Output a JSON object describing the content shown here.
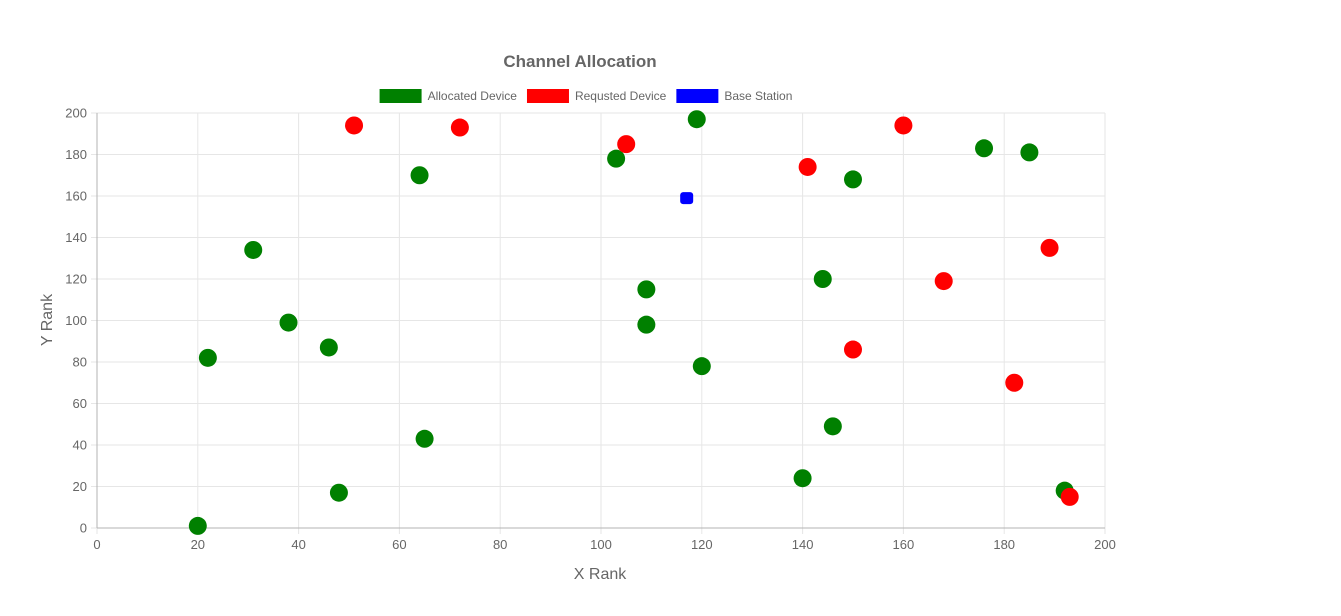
{
  "chart_data": {
    "type": "scatter",
    "title": "Channel Allocation",
    "xlabel": "X Rank",
    "ylabel": "Y Rank",
    "xlim": [
      0,
      200
    ],
    "ylim": [
      0,
      200
    ],
    "xticks": [
      0,
      20,
      40,
      60,
      80,
      100,
      120,
      140,
      160,
      180,
      200
    ],
    "yticks": [
      0,
      20,
      40,
      60,
      80,
      100,
      120,
      140,
      160,
      180,
      200
    ],
    "grid": true,
    "legend_position": "top",
    "series": [
      {
        "name": "Allocated Device",
        "color": "#008000",
        "marker": "circle",
        "points": [
          {
            "x": 20,
            "y": 1
          },
          {
            "x": 22,
            "y": 82
          },
          {
            "x": 31,
            "y": 134
          },
          {
            "x": 38,
            "y": 99
          },
          {
            "x": 46,
            "y": 87
          },
          {
            "x": 48,
            "y": 17
          },
          {
            "x": 64,
            "y": 170
          },
          {
            "x": 65,
            "y": 43
          },
          {
            "x": 103,
            "y": 178
          },
          {
            "x": 109,
            "y": 115
          },
          {
            "x": 109,
            "y": 98
          },
          {
            "x": 119,
            "y": 197
          },
          {
            "x": 120,
            "y": 78
          },
          {
            "x": 140,
            "y": 24
          },
          {
            "x": 144,
            "y": 120
          },
          {
            "x": 146,
            "y": 49
          },
          {
            "x": 150,
            "y": 168
          },
          {
            "x": 176,
            "y": 183
          },
          {
            "x": 185,
            "y": 181
          },
          {
            "x": 192,
            "y": 18
          }
        ]
      },
      {
        "name": "Requsted Device",
        "color": "#ff0000",
        "marker": "circle",
        "points": [
          {
            "x": 51,
            "y": 194
          },
          {
            "x": 72,
            "y": 193
          },
          {
            "x": 105,
            "y": 185
          },
          {
            "x": 141,
            "y": 174
          },
          {
            "x": 150,
            "y": 86
          },
          {
            "x": 160,
            "y": 194
          },
          {
            "x": 168,
            "y": 119
          },
          {
            "x": 182,
            "y": 70
          },
          {
            "x": 189,
            "y": 135
          },
          {
            "x": 193,
            "y": 15
          }
        ]
      },
      {
        "name": "Base Station",
        "color": "#0000ff",
        "marker": "rounded-square",
        "points": [
          {
            "x": 117,
            "y": 159
          }
        ]
      }
    ]
  }
}
